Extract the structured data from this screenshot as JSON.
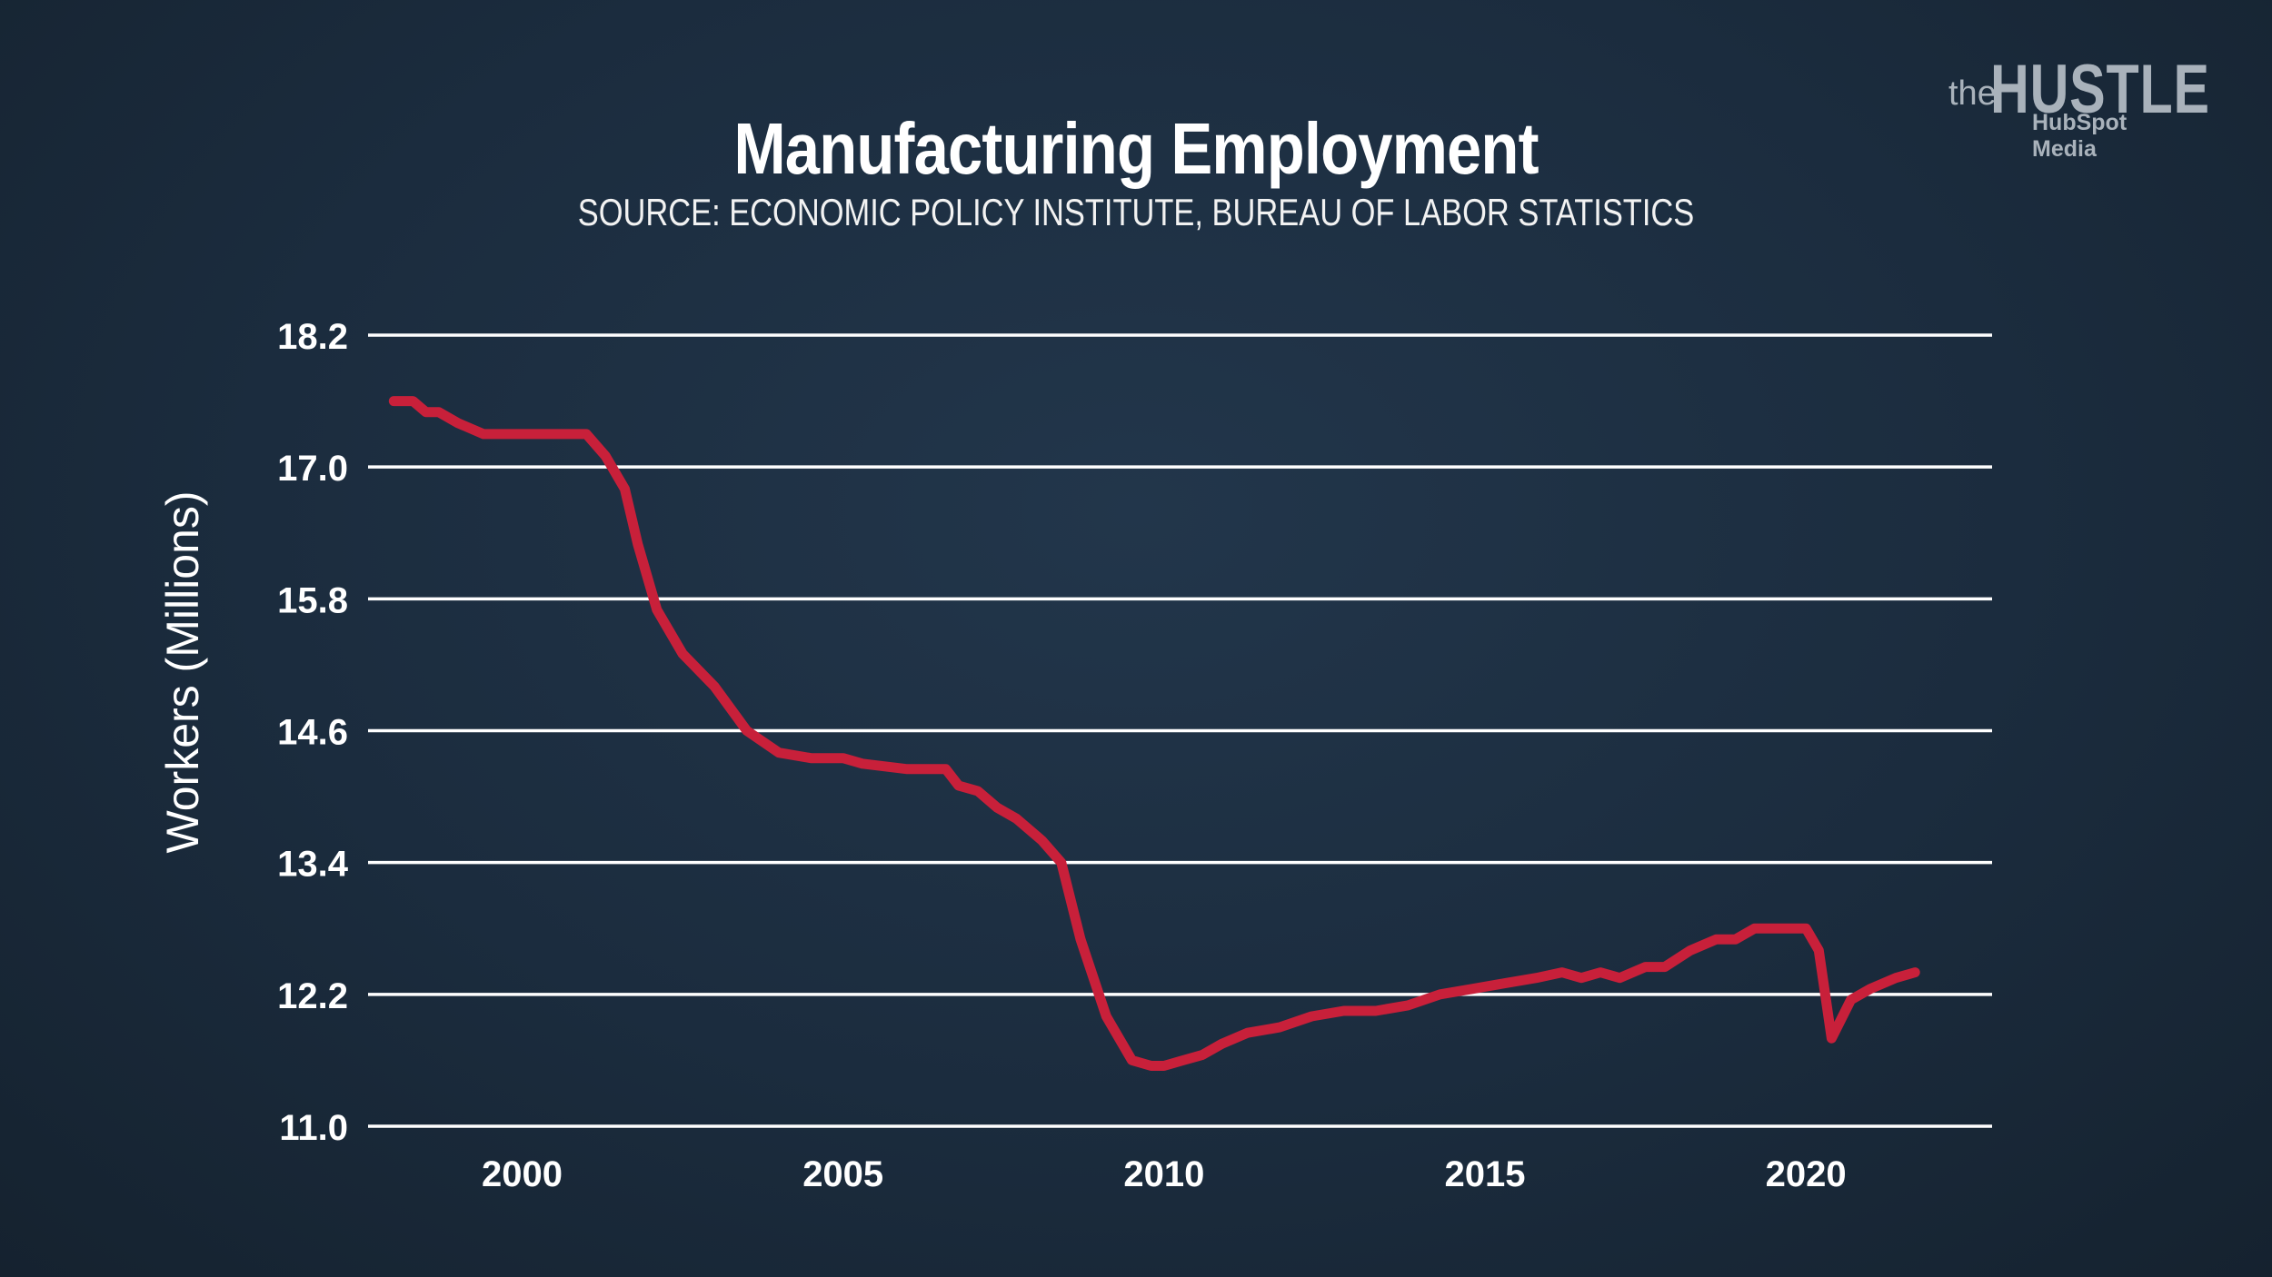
{
  "brand": {
    "prefix": "the",
    "name": "HUSTLE",
    "sub": "HubSpot Media",
    "color": "#a9b2bb"
  },
  "chart_data": {
    "type": "line",
    "title": "Manufacturing Employment",
    "subtitle": "SOURCE: ECONOMIC POLICY INSTITUTE, BUREAU OF LABOR STATISTICS",
    "xlabel": "",
    "ylabel": "Workers (Millions)",
    "xlim": [
      1997.6,
      2022.9
    ],
    "ylim": [
      11.0,
      18.2
    ],
    "yticks": [
      "11.0",
      "12.2",
      "13.4",
      "14.6",
      "15.8",
      "17.0",
      "18.2"
    ],
    "xticks": [
      "2000",
      "2005",
      "2010",
      "2015",
      "2020"
    ],
    "grid": true,
    "line_color": "#c8203a",
    "series": [
      {
        "name": "Manufacturing employment",
        "x": [
          1998.0,
          1998.3,
          1998.5,
          1998.7,
          1999.0,
          1999.4,
          2000.0,
          2000.6,
          2001.0,
          2001.3,
          2001.6,
          2001.8,
          2002.1,
          2002.5,
          2003.0,
          2003.5,
          2004.0,
          2004.5,
          2005.0,
          2005.3,
          2006.0,
          2006.6,
          2006.8,
          2007.1,
          2007.4,
          2007.7,
          2008.1,
          2008.4,
          2008.7,
          2009.1,
          2009.5,
          2009.8,
          2010.0,
          2010.3,
          2010.6,
          2010.9,
          2011.3,
          2011.8,
          2012.3,
          2012.8,
          2013.3,
          2013.8,
          2014.3,
          2014.8,
          2015.3,
          2015.8,
          2016.2,
          2016.5,
          2016.8,
          2017.1,
          2017.5,
          2017.8,
          2018.2,
          2018.6,
          2018.9,
          2019.2,
          2019.6,
          2019.9,
          2020.0,
          2020.2,
          2020.4,
          2020.7,
          2021.0,
          2021.4,
          2021.7
        ],
        "y": [
          17.6,
          17.6,
          17.5,
          17.5,
          17.4,
          17.3,
          17.3,
          17.3,
          17.3,
          17.1,
          16.8,
          16.3,
          15.7,
          15.3,
          15.0,
          14.6,
          14.4,
          14.35,
          14.35,
          14.3,
          14.25,
          14.25,
          14.1,
          14.05,
          13.9,
          13.8,
          13.6,
          13.4,
          12.7,
          12.0,
          11.6,
          11.55,
          11.55,
          11.6,
          11.65,
          11.75,
          11.85,
          11.9,
          12.0,
          12.05,
          12.05,
          12.1,
          12.2,
          12.25,
          12.3,
          12.35,
          12.4,
          12.35,
          12.4,
          12.35,
          12.45,
          12.45,
          12.6,
          12.7,
          12.7,
          12.8,
          12.8,
          12.8,
          12.8,
          12.6,
          11.8,
          12.15,
          12.25,
          12.35,
          12.4
        ]
      }
    ]
  }
}
